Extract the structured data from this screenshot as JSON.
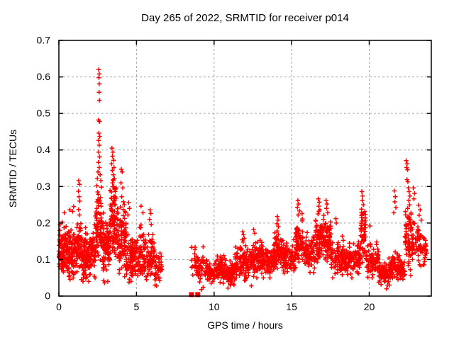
{
  "chart_data": {
    "type": "scatter",
    "title": "Day 265 of 2022, SRMTID for receiver p014",
    "xlabel": "GPS time / hours",
    "ylabel": "SRMTID / TECUs",
    "xlim": [
      0,
      24
    ],
    "ylim": [
      0,
      0.7
    ],
    "xticks": [
      {
        "v": 0,
        "label": "0"
      },
      {
        "v": 5,
        "label": "5"
      },
      {
        "v": 10,
        "label": "10"
      },
      {
        "v": 15,
        "label": "15"
      },
      {
        "v": 20,
        "label": "20"
      }
    ],
    "yticks": [
      {
        "v": 0,
        "label": "0"
      },
      {
        "v": 0.1,
        "label": "0.1"
      },
      {
        "v": 0.2,
        "label": "0.2"
      },
      {
        "v": 0.3,
        "label": "0.3"
      },
      {
        "v": 0.4,
        "label": "0.4"
      },
      {
        "v": 0.5,
        "label": "0.5"
      },
      {
        "v": 0.6,
        "label": "0.6"
      },
      {
        "v": 0.7,
        "label": "0.7"
      }
    ],
    "grid": true,
    "grid_color": "#a6a6a6",
    "marker": {
      "shape": "plus",
      "color": "#ff0000",
      "size": 7
    },
    "border_color": "#000000",
    "legend": null,
    "seed": 265,
    "zero_squares": [
      [
        8.55,
        0.004
      ],
      [
        8.95,
        0.004
      ]
    ],
    "dense_bands": [
      [
        0.0,
        0.6,
        110,
        0.045,
        0.235,
        0.4
      ],
      [
        0.6,
        1.2,
        100,
        0.04,
        0.23,
        0.38
      ],
      [
        1.2,
        1.45,
        40,
        0.05,
        0.26,
        0.4
      ],
      [
        1.45,
        2.35,
        150,
        0.04,
        0.235,
        0.36
      ],
      [
        2.35,
        2.8,
        70,
        0.06,
        0.33,
        0.45
      ],
      [
        2.8,
        3.3,
        90,
        0.05,
        0.28,
        0.4
      ],
      [
        3.3,
        3.75,
        80,
        0.07,
        0.37,
        0.45
      ],
      [
        3.75,
        4.35,
        90,
        0.05,
        0.31,
        0.4
      ],
      [
        4.35,
        5.05,
        90,
        0.04,
        0.22,
        0.36
      ],
      [
        5.05,
        5.65,
        70,
        0.04,
        0.24,
        0.36
      ],
      [
        5.65,
        6.15,
        60,
        0.045,
        0.22,
        0.36
      ],
      [
        6.15,
        6.65,
        40,
        0.03,
        0.16,
        0.36
      ],
      [
        8.55,
        8.8,
        14,
        0.04,
        0.17,
        0.42
      ],
      [
        8.8,
        9.35,
        40,
        0.03,
        0.16,
        0.38
      ],
      [
        9.35,
        10.1,
        60,
        0.035,
        0.12,
        0.36
      ],
      [
        10.1,
        10.7,
        65,
        0.035,
        0.145,
        0.36
      ],
      [
        10.7,
        11.35,
        75,
        0.03,
        0.125,
        0.36
      ],
      [
        11.35,
        12.25,
        100,
        0.04,
        0.175,
        0.38
      ],
      [
        12.25,
        13.1,
        100,
        0.05,
        0.185,
        0.4
      ],
      [
        13.1,
        13.85,
        85,
        0.05,
        0.165,
        0.4
      ],
      [
        13.85,
        14.45,
        75,
        0.06,
        0.21,
        0.42
      ],
      [
        14.45,
        15.25,
        80,
        0.055,
        0.175,
        0.4
      ],
      [
        15.25,
        15.75,
        65,
        0.07,
        0.245,
        0.45
      ],
      [
        15.75,
        16.55,
        80,
        0.06,
        0.195,
        0.42
      ],
      [
        16.55,
        17.05,
        70,
        0.07,
        0.26,
        0.45
      ],
      [
        17.05,
        17.55,
        70,
        0.07,
        0.255,
        0.45
      ],
      [
        17.55,
        18.45,
        90,
        0.05,
        0.185,
        0.4
      ],
      [
        18.45,
        19.1,
        75,
        0.05,
        0.17,
        0.4
      ],
      [
        19.1,
        19.45,
        45,
        0.06,
        0.185,
        0.4
      ],
      [
        19.45,
        19.8,
        45,
        0.07,
        0.28,
        0.45
      ],
      [
        19.8,
        20.6,
        75,
        0.05,
        0.185,
        0.38
      ],
      [
        20.6,
        21.35,
        65,
        0.03,
        0.12,
        0.36
      ],
      [
        21.35,
        21.95,
        60,
        0.04,
        0.15,
        0.38
      ],
      [
        21.95,
        22.3,
        40,
        0.04,
        0.13,
        0.38
      ],
      [
        22.3,
        22.7,
        55,
        0.05,
        0.3,
        0.45
      ],
      [
        22.7,
        23.35,
        55,
        0.07,
        0.25,
        0.42
      ],
      [
        23.35,
        23.7,
        30,
        0.075,
        0.195,
        0.42
      ]
    ],
    "outlier_points": [
      [
        2.57,
        0.62
      ],
      [
        2.6,
        0.608
      ],
      [
        2.58,
        0.598
      ],
      [
        2.6,
        0.581
      ],
      [
        2.59,
        0.558
      ],
      [
        2.61,
        0.536
      ],
      [
        2.55,
        0.482
      ],
      [
        2.62,
        0.478
      ],
      [
        2.58,
        0.446
      ],
      [
        2.63,
        0.437
      ],
      [
        2.56,
        0.426
      ],
      [
        2.6,
        0.413
      ],
      [
        2.57,
        0.394
      ],
      [
        2.62,
        0.381
      ],
      [
        2.55,
        0.366
      ],
      [
        2.6,
        0.352
      ],
      [
        2.52,
        0.34
      ],
      [
        2.66,
        0.332
      ],
      [
        2.48,
        0.322
      ],
      [
        2.7,
        0.316
      ],
      [
        2.44,
        0.302
      ],
      [
        2.74,
        0.298
      ],
      [
        2.5,
        0.285
      ],
      [
        2.68,
        0.27
      ],
      [
        2.46,
        0.258
      ],
      [
        2.72,
        0.246
      ],
      [
        1.28,
        0.316
      ],
      [
        1.32,
        0.306
      ],
      [
        1.26,
        0.287
      ],
      [
        1.3,
        0.272
      ],
      [
        1.34,
        0.26
      ],
      [
        1.27,
        0.237
      ],
      [
        1.31,
        0.222
      ],
      [
        0.95,
        0.245
      ],
      [
        0.88,
        0.232
      ],
      [
        0.35,
        0.228
      ],
      [
        0.7,
        0.236
      ],
      [
        3.42,
        0.405
      ],
      [
        3.48,
        0.394
      ],
      [
        3.45,
        0.383
      ],
      [
        3.52,
        0.372
      ],
      [
        3.4,
        0.362
      ],
      [
        3.55,
        0.352
      ],
      [
        3.44,
        0.344
      ],
      [
        3.5,
        0.332
      ],
      [
        3.58,
        0.322
      ],
      [
        3.46,
        0.31
      ],
      [
        3.53,
        0.3
      ],
      [
        3.6,
        0.292
      ],
      [
        3.38,
        0.285
      ],
      [
        3.62,
        0.272
      ],
      [
        3.56,
        0.26
      ],
      [
        3.48,
        0.252
      ],
      [
        4.02,
        0.347
      ],
      [
        4.08,
        0.34
      ],
      [
        4.0,
        0.31
      ],
      [
        4.12,
        0.296
      ],
      [
        4.05,
        0.272
      ],
      [
        4.15,
        0.258
      ],
      [
        4.22,
        0.25
      ],
      [
        4.3,
        0.228
      ],
      [
        4.5,
        0.256
      ],
      [
        4.55,
        0.24
      ],
      [
        4.45,
        0.222
      ],
      [
        5.3,
        0.246
      ],
      [
        5.42,
        0.228
      ],
      [
        5.88,
        0.236
      ],
      [
        5.92,
        0.226
      ],
      [
        5.85,
        0.21
      ],
      [
        5.95,
        0.196
      ],
      [
        2.88,
        0.042
      ],
      [
        2.95,
        0.036
      ],
      [
        3.15,
        0.04
      ],
      [
        4.52,
        0.038
      ],
      [
        6.3,
        0.028
      ],
      [
        1.45,
        0.045
      ],
      [
        9.18,
        0.018
      ],
      [
        9.3,
        0.024
      ],
      [
        10.9,
        0.022
      ],
      [
        12.4,
        0.028
      ],
      [
        21.12,
        0.02
      ],
      [
        21.18,
        0.03
      ],
      [
        21.24,
        0.04
      ],
      [
        11.85,
        0.176
      ],
      [
        11.9,
        0.168
      ],
      [
        11.95,
        0.158
      ],
      [
        11.88,
        0.148
      ],
      [
        12.55,
        0.182
      ],
      [
        12.62,
        0.172
      ],
      [
        14.08,
        0.218
      ],
      [
        14.12,
        0.208
      ],
      [
        14.05,
        0.198
      ],
      [
        14.15,
        0.19
      ],
      [
        15.4,
        0.262
      ],
      [
        15.45,
        0.252
      ],
      [
        15.37,
        0.243
      ],
      [
        15.5,
        0.233
      ],
      [
        15.42,
        0.222
      ],
      [
        16.72,
        0.266
      ],
      [
        16.78,
        0.257
      ],
      [
        16.75,
        0.246
      ],
      [
        16.82,
        0.236
      ],
      [
        16.7,
        0.225
      ],
      [
        17.22,
        0.262
      ],
      [
        17.28,
        0.252
      ],
      [
        17.25,
        0.24
      ],
      [
        17.32,
        0.228
      ],
      [
        17.85,
        0.212
      ],
      [
        17.88,
        0.2
      ],
      [
        19.52,
        0.286
      ],
      [
        19.58,
        0.274
      ],
      [
        19.55,
        0.262
      ],
      [
        19.62,
        0.25
      ],
      [
        19.5,
        0.238
      ],
      [
        19.65,
        0.226
      ],
      [
        20.05,
        0.192
      ],
      [
        21.62,
        0.288
      ],
      [
        21.68,
        0.272
      ],
      [
        21.65,
        0.258
      ],
      [
        21.72,
        0.242
      ],
      [
        21.58,
        0.228
      ],
      [
        22.38,
        0.371
      ],
      [
        22.44,
        0.362
      ],
      [
        22.41,
        0.352
      ],
      [
        22.47,
        0.346
      ],
      [
        22.43,
        0.319
      ],
      [
        22.49,
        0.313
      ],
      [
        22.52,
        0.296
      ],
      [
        22.57,
        0.286
      ],
      [
        22.62,
        0.274
      ],
      [
        22.55,
        0.262
      ],
      [
        22.6,
        0.25
      ],
      [
        22.48,
        0.24
      ],
      [
        22.85,
        0.296
      ],
      [
        22.92,
        0.281
      ],
      [
        22.88,
        0.266
      ],
      [
        23.18,
        0.249
      ],
      [
        23.28,
        0.236
      ],
      [
        23.22,
        0.221
      ],
      [
        23.35,
        0.208
      ]
    ]
  }
}
